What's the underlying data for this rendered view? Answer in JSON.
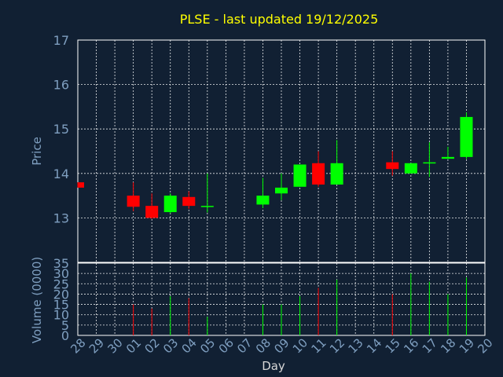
{
  "title": "PLSE - last updated 19/12/2025",
  "colors": {
    "up": "#00ff00",
    "down": "#ff0000",
    "title": "#ffff00",
    "axis_text": "#7f9fc0",
    "background": "#112033"
  },
  "chart_data": [
    {
      "type": "candlestick",
      "ylabel": "Price",
      "ylim": [
        12.0,
        17.0
      ],
      "yticks": [
        13,
        14,
        15,
        16,
        17
      ],
      "grid": true,
      "x": [
        "28",
        "29",
        "30",
        "01",
        "02",
        "03",
        "04",
        "05",
        "06",
        "07",
        "08",
        "09",
        "10",
        "11",
        "12",
        "13",
        "14",
        "15",
        "16",
        "17",
        "18",
        "19",
        "20"
      ],
      "candles": [
        {
          "day": "28",
          "open": 13.8,
          "high": 13.8,
          "low": 13.68,
          "close": 13.68
        },
        {
          "day": "01",
          "open": 13.5,
          "high": 13.8,
          "low": 13.15,
          "close": 13.25
        },
        {
          "day": "02",
          "open": 13.27,
          "high": 13.55,
          "low": 12.98,
          "close": 13.0
        },
        {
          "day": "03",
          "open": 13.13,
          "high": 13.55,
          "low": 13.1,
          "close": 13.5
        },
        {
          "day": "04",
          "open": 13.47,
          "high": 13.6,
          "low": 13.2,
          "close": 13.27
        },
        {
          "day": "05",
          "open": 13.25,
          "high": 14.0,
          "low": 13.12,
          "close": 13.27
        },
        {
          "day": "08",
          "open": 13.3,
          "high": 13.9,
          "low": 13.22,
          "close": 13.5
        },
        {
          "day": "09",
          "open": 13.55,
          "high": 14.0,
          "low": 13.4,
          "close": 13.68
        },
        {
          "day": "10",
          "open": 13.7,
          "high": 14.2,
          "low": 13.7,
          "close": 14.2
        },
        {
          "day": "11",
          "open": 14.23,
          "high": 14.5,
          "low": 13.7,
          "close": 13.75
        },
        {
          "day": "12",
          "open": 13.75,
          "high": 14.75,
          "low": 13.75,
          "close": 14.23
        },
        {
          "day": "15",
          "open": 14.25,
          "high": 14.5,
          "low": 13.95,
          "close": 14.1
        },
        {
          "day": "16",
          "open": 14.0,
          "high": 14.23,
          "low": 14.0,
          "close": 14.23
        },
        {
          "day": "17",
          "open": 14.23,
          "high": 14.7,
          "low": 13.92,
          "close": 14.25
        },
        {
          "day": "18",
          "open": 14.33,
          "high": 14.6,
          "low": 14.32,
          "close": 14.37
        },
        {
          "day": "19",
          "open": 14.37,
          "high": 15.37,
          "low": 14.32,
          "close": 15.27
        }
      ]
    },
    {
      "type": "bar",
      "ylabel": "Volume (0000)",
      "xlabel": "Day",
      "ylim": [
        0,
        35
      ],
      "yticks": [
        0,
        5,
        10,
        15,
        20,
        25,
        30,
        35
      ],
      "grid": true,
      "x": [
        "28",
        "29",
        "30",
        "01",
        "02",
        "03",
        "04",
        "05",
        "06",
        "07",
        "08",
        "09",
        "10",
        "11",
        "12",
        "13",
        "14",
        "15",
        "16",
        "17",
        "18",
        "19",
        "20"
      ],
      "bars": [
        {
          "day": "01",
          "value": 15,
          "dir": "down"
        },
        {
          "day": "02",
          "value": 13,
          "dir": "down"
        },
        {
          "day": "03",
          "value": 19,
          "dir": "up"
        },
        {
          "day": "04",
          "value": 18,
          "dir": "down"
        },
        {
          "day": "05",
          "value": 9,
          "dir": "up"
        },
        {
          "day": "08",
          "value": 15,
          "dir": "up"
        },
        {
          "day": "09",
          "value": 15,
          "dir": "up"
        },
        {
          "day": "10",
          "value": 19,
          "dir": "up"
        },
        {
          "day": "11",
          "value": 23,
          "dir": "down"
        },
        {
          "day": "12",
          "value": 27,
          "dir": "up"
        },
        {
          "day": "15",
          "value": 20,
          "dir": "down"
        },
        {
          "day": "16",
          "value": 30,
          "dir": "up"
        },
        {
          "day": "17",
          "value": 26,
          "dir": "up"
        },
        {
          "day": "18",
          "value": 20,
          "dir": "up"
        },
        {
          "day": "19",
          "value": 28,
          "dir": "up"
        }
      ]
    }
  ]
}
